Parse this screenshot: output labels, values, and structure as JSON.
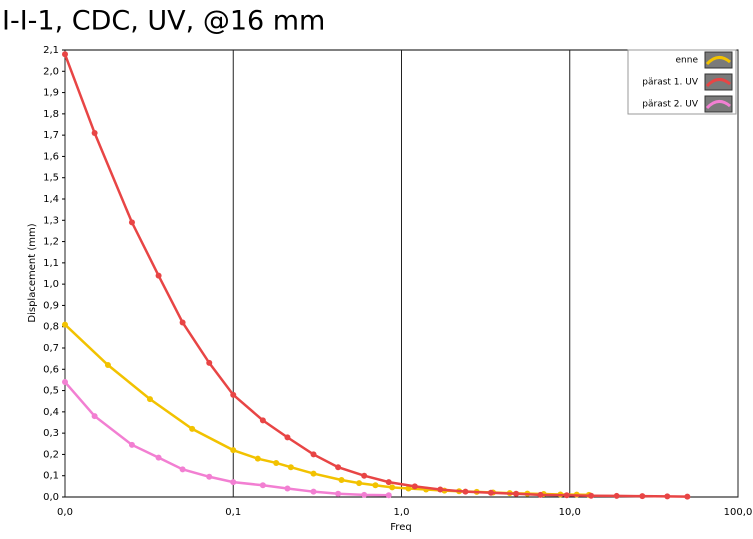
{
  "chart_data": {
    "type": "line",
    "title": "I-I-1, CDC, UV, @16 mm",
    "xlabel": "Freq",
    "ylabel": "Displacement (mm)",
    "xscale": "log",
    "xgrid": true,
    "xlim": [
      0.01,
      100
    ],
    "xticks": [
      {
        "value": 0.01,
        "label": "0,0"
      },
      {
        "value": 0.1,
        "label": "0,1"
      },
      {
        "value": 1,
        "label": "1,0"
      },
      {
        "value": 10,
        "label": "10,0"
      },
      {
        "value": 100,
        "label": "100,0"
      }
    ],
    "ylim": [
      0,
      2.1
    ],
    "yticks": [
      {
        "value": 0,
        "label": "0,0"
      },
      {
        "value": 0.1,
        "label": "0,1"
      },
      {
        "value": 0.2,
        "label": "0,2"
      },
      {
        "value": 0.3,
        "label": "0,3"
      },
      {
        "value": 0.4,
        "label": "0,4"
      },
      {
        "value": 0.5,
        "label": "0,5"
      },
      {
        "value": 0.6,
        "label": "0,6"
      },
      {
        "value": 0.7,
        "label": "0,7"
      },
      {
        "value": 0.8,
        "label": "0,8"
      },
      {
        "value": 0.9,
        "label": "0,9"
      },
      {
        "value": 1.0,
        "label": "1,0"
      },
      {
        "value": 1.1,
        "label": "1,1"
      },
      {
        "value": 1.2,
        "label": "1,2"
      },
      {
        "value": 1.3,
        "label": "1,3"
      },
      {
        "value": 1.4,
        "label": "1,4"
      },
      {
        "value": 1.5,
        "label": "1,5"
      },
      {
        "value": 1.6,
        "label": "1,6"
      },
      {
        "value": 1.7,
        "label": "1,7"
      },
      {
        "value": 1.8,
        "label": "1,8"
      },
      {
        "value": 1.9,
        "label": "1,9"
      },
      {
        "value": 2.0,
        "label": "2,0"
      },
      {
        "value": 2.1,
        "label": "2,1"
      }
    ],
    "series": [
      {
        "name": "enne",
        "color": "#f2c200",
        "x": [
          0.01,
          0.018,
          0.032,
          0.057,
          0.1,
          0.14,
          0.18,
          0.22,
          0.3,
          0.44,
          0.56,
          0.7,
          0.88,
          1.1,
          1.4,
          1.8,
          2.2,
          2.8,
          3.5,
          4.4,
          5.6,
          7,
          8.8,
          11,
          13
        ],
        "values": [
          0.81,
          0.62,
          0.46,
          0.32,
          0.22,
          0.18,
          0.16,
          0.14,
          0.11,
          0.08,
          0.065,
          0.055,
          0.045,
          0.04,
          0.035,
          0.03,
          0.027,
          0.024,
          0.021,
          0.018,
          0.016,
          0.014,
          0.012,
          0.011,
          0.01
        ]
      },
      {
        "name": "pärast 1. UV",
        "color": "#e84545",
        "x": [
          0.01,
          0.015,
          0.025,
          0.036,
          0.05,
          0.072,
          0.1,
          0.15,
          0.21,
          0.3,
          0.42,
          0.6,
          0.84,
          1.2,
          1.7,
          2.4,
          3.4,
          4.8,
          6.7,
          9.6,
          13.4,
          19,
          27,
          38,
          50
        ],
        "values": [
          2.08,
          1.71,
          1.29,
          1.04,
          0.82,
          0.63,
          0.48,
          0.36,
          0.28,
          0.2,
          0.14,
          0.1,
          0.07,
          0.05,
          0.035,
          0.025,
          0.02,
          0.015,
          0.01,
          0.008,
          0.006,
          0.005,
          0.004,
          0.003,
          0.002
        ]
      },
      {
        "name": "pärast 2. UV",
        "color": "#f27fd2",
        "x": [
          0.01,
          0.015,
          0.025,
          0.036,
          0.05,
          0.072,
          0.1,
          0.15,
          0.21,
          0.3,
          0.42,
          0.6,
          0.84
        ],
        "values": [
          0.54,
          0.38,
          0.245,
          0.185,
          0.13,
          0.095,
          0.07,
          0.055,
          0.04,
          0.025,
          0.015,
          0.01,
          0.008
        ]
      }
    ]
  }
}
